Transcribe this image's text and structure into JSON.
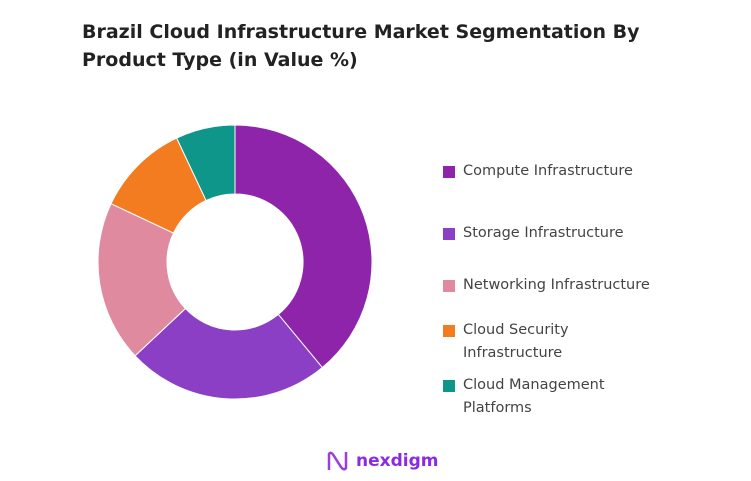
{
  "chart_data": {
    "type": "pie",
    "donut": true,
    "title": "Brazil Cloud Infrastructure Market Segmentation By Product Type (in Value %)",
    "categories": [
      "Compute Infrastructure",
      "Storage Infrastructure",
      "Networking Infrastructure",
      "Cloud Security Infrastructure",
      "Cloud Management Platforms"
    ],
    "values": [
      39,
      24,
      19,
      11,
      7
    ],
    "colors": [
      "#8e24aa",
      "#8a3fc4",
      "#e08aa0",
      "#f47c20",
      "#0f968a"
    ],
    "legend_position": "right"
  },
  "logo": {
    "text": "nexdigm"
  }
}
